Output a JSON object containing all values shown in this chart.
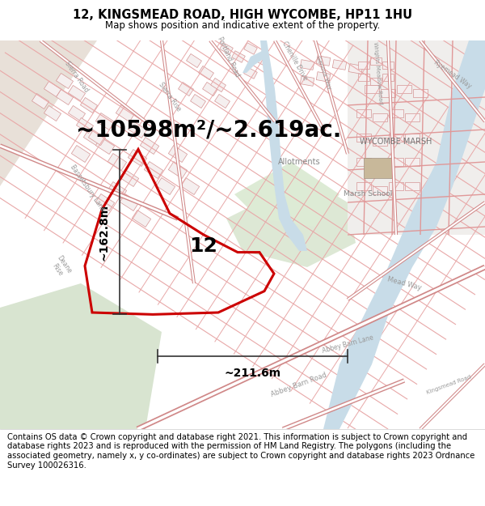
{
  "title_line1": "12, KINGSMEAD ROAD, HIGH WYCOMBE, HP11 1HU",
  "title_line2": "Map shows position and indicative extent of the property.",
  "title_fontsize": 10.5,
  "subtitle_fontsize": 8.5,
  "area_text": "~10598m²/~2.619ac.",
  "area_fontsize": 20,
  "label_12_fontsize": 18,
  "dim_width": "~211.6m",
  "dim_height": "~162.8m",
  "dim_fontsize": 10,
  "footer_text": "Contains OS data © Crown copyright and database right 2021. This information is subject to Crown copyright and database rights 2023 and is reproduced with the permission of HM Land Registry. The polygons (including the associated geometry, namely x, y co-ordinates) are subject to Crown copyright and database rights 2023 Ordnance Survey 100026316.",
  "footer_fontsize": 7.2,
  "map_bg": "#f5f0eb",
  "road_outline": "#e8a0a0",
  "road_fill": "#ffffff",
  "green_color": "#dde8d5",
  "water_color": "#c8dce8",
  "tan_color": "#e8e0d8",
  "gray_area": "#e8e4e0",
  "building_color": "#f0e8e8",
  "building_outline": "#d49090"
}
